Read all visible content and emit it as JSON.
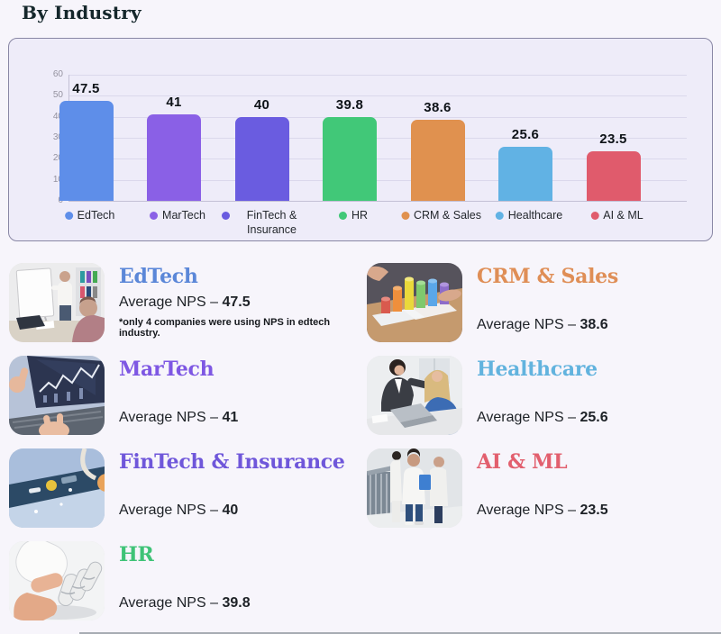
{
  "page": {
    "title": "By Industry"
  },
  "chart_data": {
    "type": "bar",
    "title": "",
    "xlabel": "",
    "ylabel": "",
    "categories": [
      "EdTech",
      "MarTech",
      "FinTech & Insurance",
      "HR",
      "CRM & Sales",
      "Healthcare",
      "AI & ML"
    ],
    "values": [
      47.5,
      41,
      40,
      39.8,
      38.6,
      25.6,
      23.5
    ],
    "value_labels": [
      "47.5",
      "41",
      "40",
      "39.8",
      "38.6",
      "25.6",
      "23.5"
    ],
    "colors": [
      "#5e8ee9",
      "#8a60e6",
      "#6a5ce0",
      "#41c878",
      "#e0914f",
      "#61b2e4",
      "#e05b6c"
    ],
    "ylim": [
      0,
      60
    ],
    "yticks": [
      0,
      10,
      20,
      30,
      40,
      50,
      60
    ],
    "grid": true,
    "legend_position": "bottom",
    "panel_background": "#eeecf9"
  },
  "cards": [
    {
      "title": "EdTech",
      "title_color": "#5b87d8",
      "label": "Average NPS –",
      "value": "47.5",
      "note": "*only 4 companies were using NPS in edtech industry.",
      "photo": "office-whiteboard-photo"
    },
    {
      "title": "MarTech",
      "title_color": "#7e57e3",
      "label": "Average NPS –",
      "value": "41",
      "photo": "stock-chart-laptop-photo"
    },
    {
      "title": "FinTech & Insurance",
      "title_color": "#6f57da",
      "label": "Average NPS –",
      "value": "40",
      "photo": "finance-flatlay-photo"
    },
    {
      "title": "HR",
      "title_color": "#3fc377",
      "label": "Average NPS –",
      "value": "39.8",
      "photo": "robot-handshake-photo"
    },
    {
      "title": "CRM & Sales",
      "title_color": "#df8e56",
      "label": "Average NPS –",
      "value": "38.6",
      "photo": "colorful-bar-blocks-photo"
    },
    {
      "title": "Healthcare",
      "title_color": "#62b3de",
      "label": "Average NPS –",
      "value": "25.6",
      "photo": "office-meeting-photo"
    },
    {
      "title": "AI & ML",
      "title_color": "#e25f6e",
      "label": "Average NPS –",
      "value": "23.5",
      "photo": "doctors-walking-photo"
    }
  ]
}
